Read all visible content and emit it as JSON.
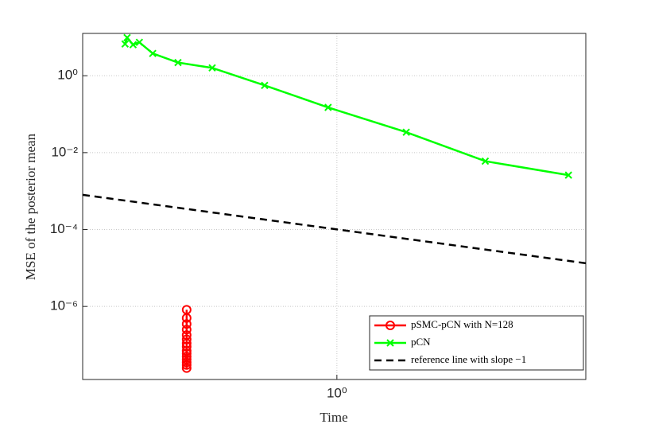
{
  "chart_data": {
    "type": "line",
    "xlabel": "Time",
    "ylabel": "MSE of the posterior mean",
    "log_x": true,
    "log_y": true,
    "xlim": [
      0.126,
      7.6
    ],
    "ylim": [
      1.26e-08,
      12.6
    ],
    "xticks": [
      {
        "value": 1,
        "label": "10⁰"
      }
    ],
    "yticks": [
      {
        "value": 1e-06,
        "label": "10⁻⁶"
      },
      {
        "value": 0.0001,
        "label": "10⁻⁴"
      },
      {
        "value": 0.01,
        "label": "10⁻²"
      },
      {
        "value": 1,
        "label": "10⁰"
      }
    ],
    "grid": true,
    "legend": "lower right",
    "series": [
      {
        "name": "pSMC-pCN with N=128",
        "color": "#ff0000",
        "marker": "o",
        "dash": false,
        "x": [
          0.294,
          0.294,
          0.294,
          0.294,
          0.294,
          0.294,
          0.294,
          0.294,
          0.294,
          0.294,
          0.294,
          0.294,
          0.294,
          0.294,
          0.294
        ],
        "values": [
          8.2e-07,
          5e-07,
          3.5e-07,
          2.5e-07,
          1.8e-07,
          1.4e-07,
          1.1e-07,
          9e-08,
          7e-08,
          6e-08,
          5e-08,
          4.2e-08,
          3.5e-08,
          3e-08,
          2.5e-08
        ]
      },
      {
        "name": "pCN",
        "color": "#00ff00",
        "marker": "x",
        "dash": false,
        "x": [
          0.178,
          0.181,
          0.19,
          0.2,
          0.223,
          0.274,
          0.362,
          0.555,
          0.931,
          1.76,
          3.35,
          6.6
        ],
        "values": [
          6.7,
          9.8,
          6.4,
          7.4,
          3.8,
          2.2,
          1.6,
          0.56,
          0.15,
          0.034,
          0.006,
          0.0026
        ]
      },
      {
        "name": "reference line with slope −1",
        "color": "#000000",
        "marker": null,
        "dash": true,
        "x": [
          0.126,
          7.6
        ],
        "values": [
          0.0008,
          1.33e-05
        ]
      }
    ]
  }
}
